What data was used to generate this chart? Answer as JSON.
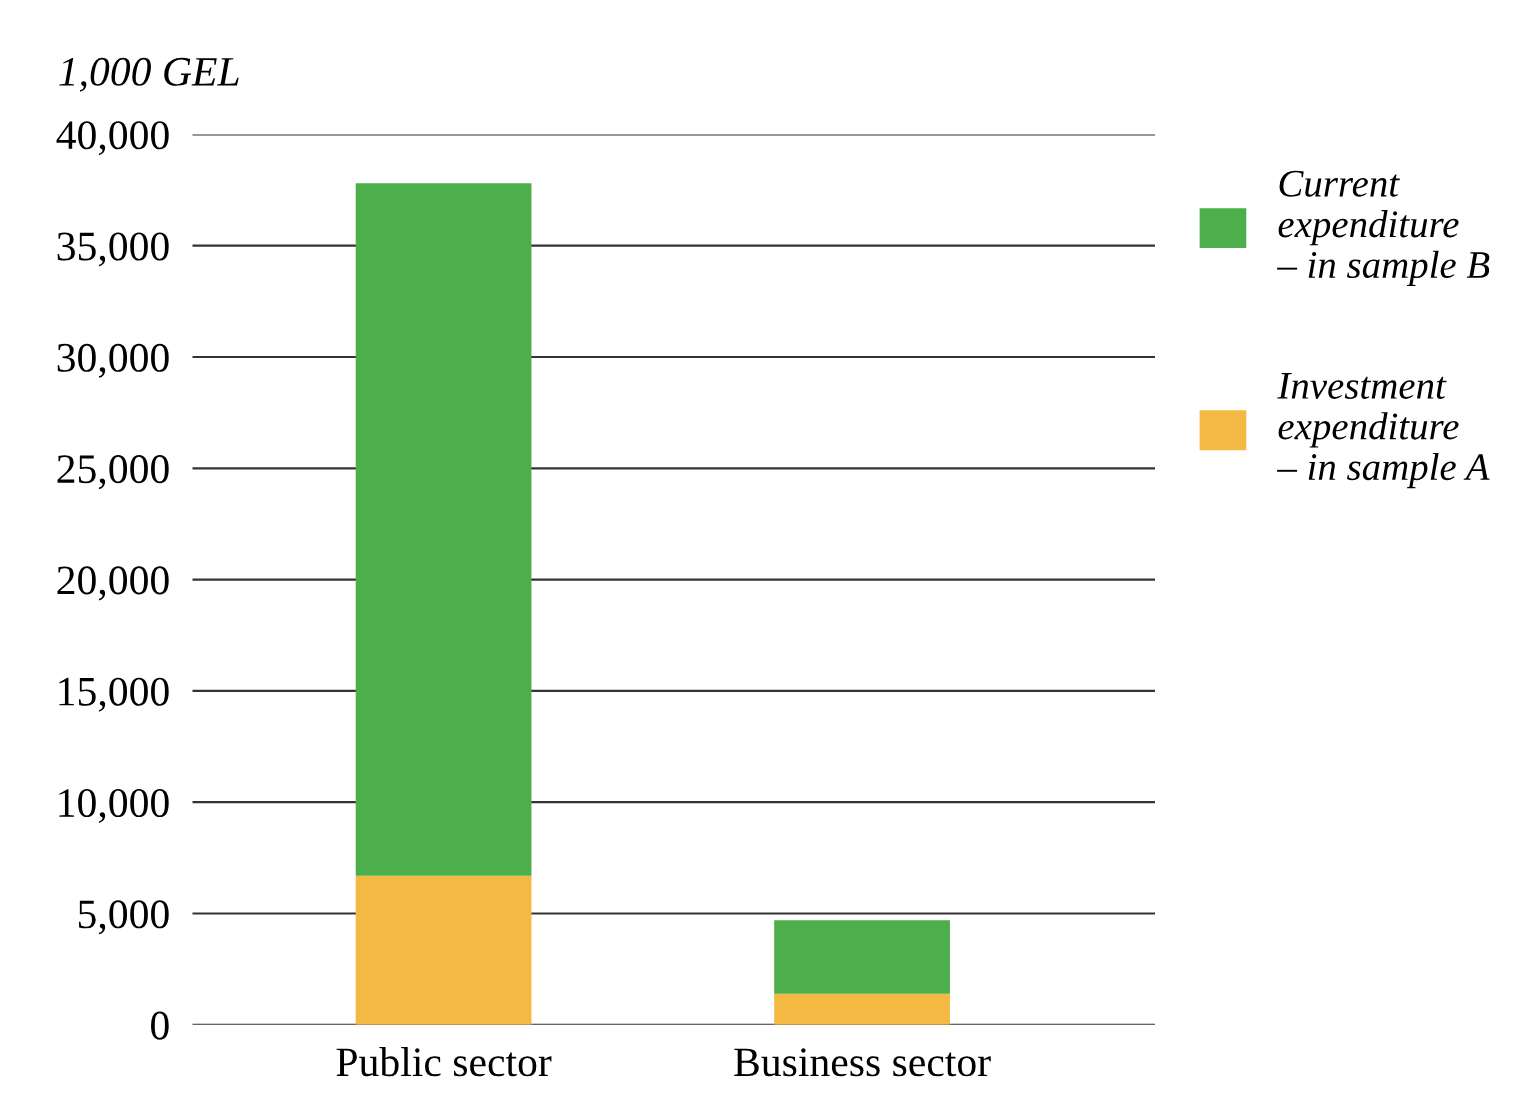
{
  "chart_data": {
    "type": "bar",
    "ylabel": "1,000 GEL",
    "categories": [
      "Public sector",
      "Business sector"
    ],
    "stacked": true,
    "series": [
      {
        "name": "Investment expenditure – in sample A",
        "color": "#f3b942",
        "values": [
          6700,
          1400
        ]
      },
      {
        "name": "Current expenditure – in sample B",
        "color": "#4caf4c",
        "values": [
          31100,
          3300
        ]
      }
    ],
    "ylim": [
      0,
      40000
    ],
    "yticks": [
      {
        "value": 0,
        "label": "0"
      },
      {
        "value": 5000,
        "label": "5,000"
      },
      {
        "value": 10000,
        "label": "10,000"
      },
      {
        "value": 15000,
        "label": "15,000"
      },
      {
        "value": 20000,
        "label": "20,000"
      },
      {
        "value": 25000,
        "label": "25,000"
      },
      {
        "value": 30000,
        "label": "30,000"
      },
      {
        "value": 35000,
        "label": "35,000"
      },
      {
        "value": 40000,
        "label": "40,000"
      }
    ],
    "grid": "y",
    "legend": "right"
  }
}
